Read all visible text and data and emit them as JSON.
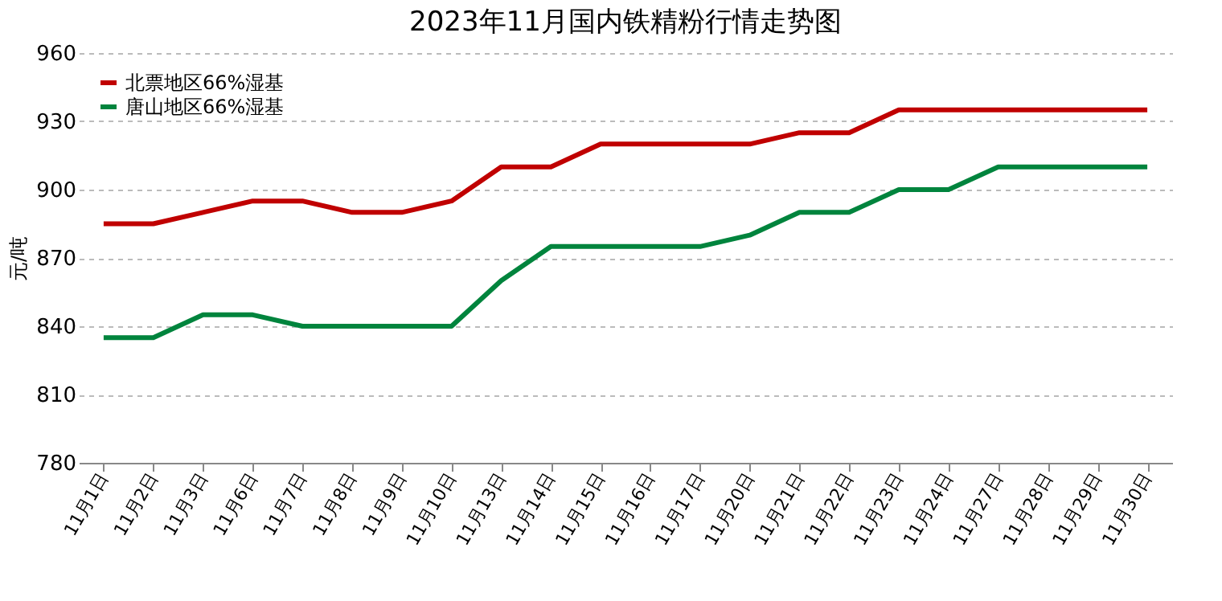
{
  "chart_data": {
    "type": "line",
    "title": "2023年11月国内铁精粉行情走势图",
    "ylabel": "元/吨",
    "categories": [
      "11月1日",
      "11月2日",
      "11月3日",
      "11月6日",
      "11月7日",
      "11月8日",
      "11月9日",
      "11月10日",
      "11月13日",
      "11月14日",
      "11月15日",
      "11月16日",
      "11月17日",
      "11月20日",
      "11月21日",
      "11月22日",
      "11月23日",
      "11月24日",
      "11月27日",
      "11月28日",
      "11月29日",
      "11月30日"
    ],
    "series": [
      {
        "name": "北票地区66%湿基",
        "color": "#c00000",
        "values": [
          885,
          885,
          890,
          895,
          895,
          890,
          890,
          895,
          910,
          910,
          920,
          920,
          920,
          920,
          925,
          925,
          935,
          935,
          935,
          935,
          935,
          935
        ]
      },
      {
        "name": "唐山地区66%湿基",
        "color": "#00843d",
        "values": [
          835,
          835,
          845,
          845,
          840,
          840,
          840,
          840,
          860,
          875,
          875,
          875,
          875,
          880,
          890,
          890,
          900,
          900,
          910,
          910,
          910,
          910
        ]
      }
    ],
    "ylim": [
      780,
      960
    ],
    "yticks": [
      780,
      810,
      840,
      870,
      900,
      930,
      960
    ],
    "grid": "y",
    "legend": "top left",
    "marker": "none",
    "line_style": "solid"
  }
}
